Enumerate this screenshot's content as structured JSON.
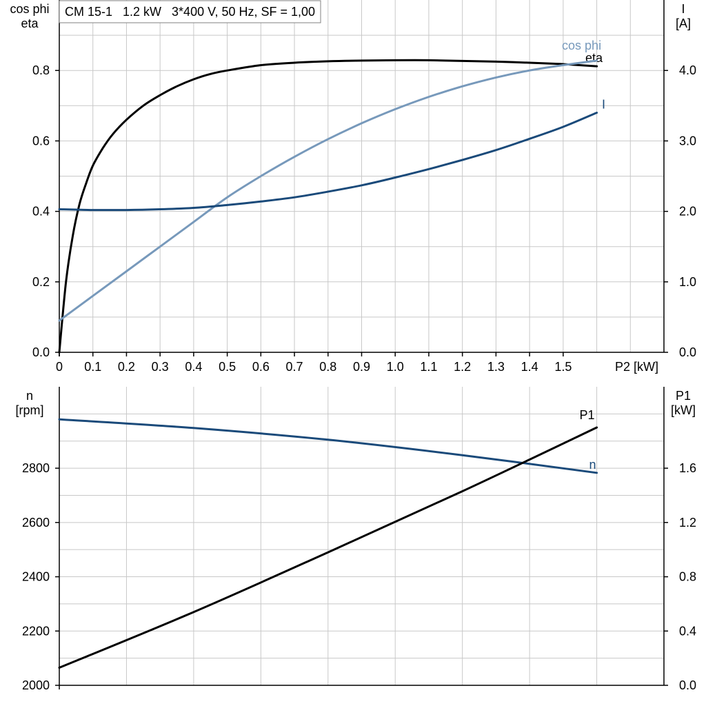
{
  "chart_data": [
    {
      "type": "line",
      "title": "CM 15-1   1.2 kW   3*400 V, 50 Hz, SF = 1,00",
      "xlabel": "P2 [kW]",
      "ylabel_left": "cos phi\neta",
      "ylabel_right": "I\n[A]",
      "xlim": [
        0,
        1.8
      ],
      "ylim_left": [
        0,
        1.0
      ],
      "ylim_right": [
        0,
        5.0
      ],
      "xticks": [
        "0",
        "0.1",
        "0.2",
        "0.3",
        "0.4",
        "0.5",
        "0.6",
        "0.7",
        "0.8",
        "0.9",
        "1.0",
        "1.1",
        "1.2",
        "1.3",
        "1.4",
        "1.5"
      ],
      "yticks_left": [
        "0.0",
        "0.2",
        "0.4",
        "0.6",
        "0.8"
      ],
      "yticks_right": [
        "0.0",
        "1.0",
        "2.0",
        "3.0",
        "4.0"
      ],
      "grid": true,
      "series": [
        {
          "name": "eta",
          "axis": "left",
          "color": "#000000",
          "x": [
            0,
            0.02,
            0.04,
            0.06,
            0.08,
            0.1,
            0.13,
            0.16,
            0.2,
            0.25,
            0.3,
            0.35,
            0.4,
            0.45,
            0.5,
            0.6,
            0.7,
            0.8,
            0.9,
            1.0,
            1.1,
            1.2,
            1.3,
            1.4,
            1.5,
            1.6
          ],
          "y": [
            0,
            0.2,
            0.33,
            0.42,
            0.48,
            0.53,
            0.58,
            0.62,
            0.66,
            0.7,
            0.73,
            0.755,
            0.775,
            0.79,
            0.8,
            0.815,
            0.822,
            0.826,
            0.828,
            0.829,
            0.829,
            0.827,
            0.825,
            0.822,
            0.818,
            0.812
          ]
        },
        {
          "name": "cos phi",
          "axis": "left",
          "color": "#7799bb",
          "x": [
            0,
            0.1,
            0.2,
            0.3,
            0.4,
            0.5,
            0.6,
            0.7,
            0.8,
            0.9,
            1.0,
            1.1,
            1.2,
            1.3,
            1.4,
            1.5,
            1.6
          ],
          "y": [
            0.09,
            0.16,
            0.23,
            0.3,
            0.37,
            0.44,
            0.5,
            0.555,
            0.605,
            0.65,
            0.69,
            0.725,
            0.755,
            0.78,
            0.8,
            0.815,
            0.828
          ]
        },
        {
          "name": "I",
          "axis": "right",
          "color": "#1a4a7a",
          "x": [
            0,
            0.1,
            0.2,
            0.3,
            0.4,
            0.5,
            0.6,
            0.7,
            0.8,
            0.9,
            1.0,
            1.1,
            1.2,
            1.3,
            1.4,
            1.5,
            1.6
          ],
          "y": [
            2.03,
            2.02,
            2.02,
            2.03,
            2.05,
            2.09,
            2.14,
            2.2,
            2.28,
            2.37,
            2.48,
            2.6,
            2.73,
            2.87,
            3.03,
            3.2,
            3.4
          ]
        }
      ]
    },
    {
      "type": "line",
      "xlabel": "",
      "ylabel_left": "n\n[rpm]",
      "ylabel_right": "P1\n[kW]",
      "xlim": [
        0,
        1.8
      ],
      "ylim_left": [
        2000,
        3100
      ],
      "ylim_right": [
        0,
        2.2
      ],
      "yticks_left": [
        "2000",
        "2200",
        "2400",
        "2600",
        "2800"
      ],
      "yticks_right": [
        "0.0",
        "0.4",
        "0.8",
        "1.2",
        "1.6"
      ],
      "grid": true,
      "series": [
        {
          "name": "n",
          "axis": "left",
          "color": "#1a4a7a",
          "x": [
            0,
            0.4,
            0.8,
            1.2,
            1.6
          ],
          "y": [
            2980,
            2948,
            2905,
            2848,
            2783
          ]
        },
        {
          "name": "P1",
          "axis": "right",
          "color": "#000000",
          "x": [
            0,
            0.4,
            0.8,
            1.2,
            1.6
          ],
          "y": [
            0.13,
            0.54,
            0.98,
            1.43,
            1.9
          ]
        }
      ]
    }
  ]
}
